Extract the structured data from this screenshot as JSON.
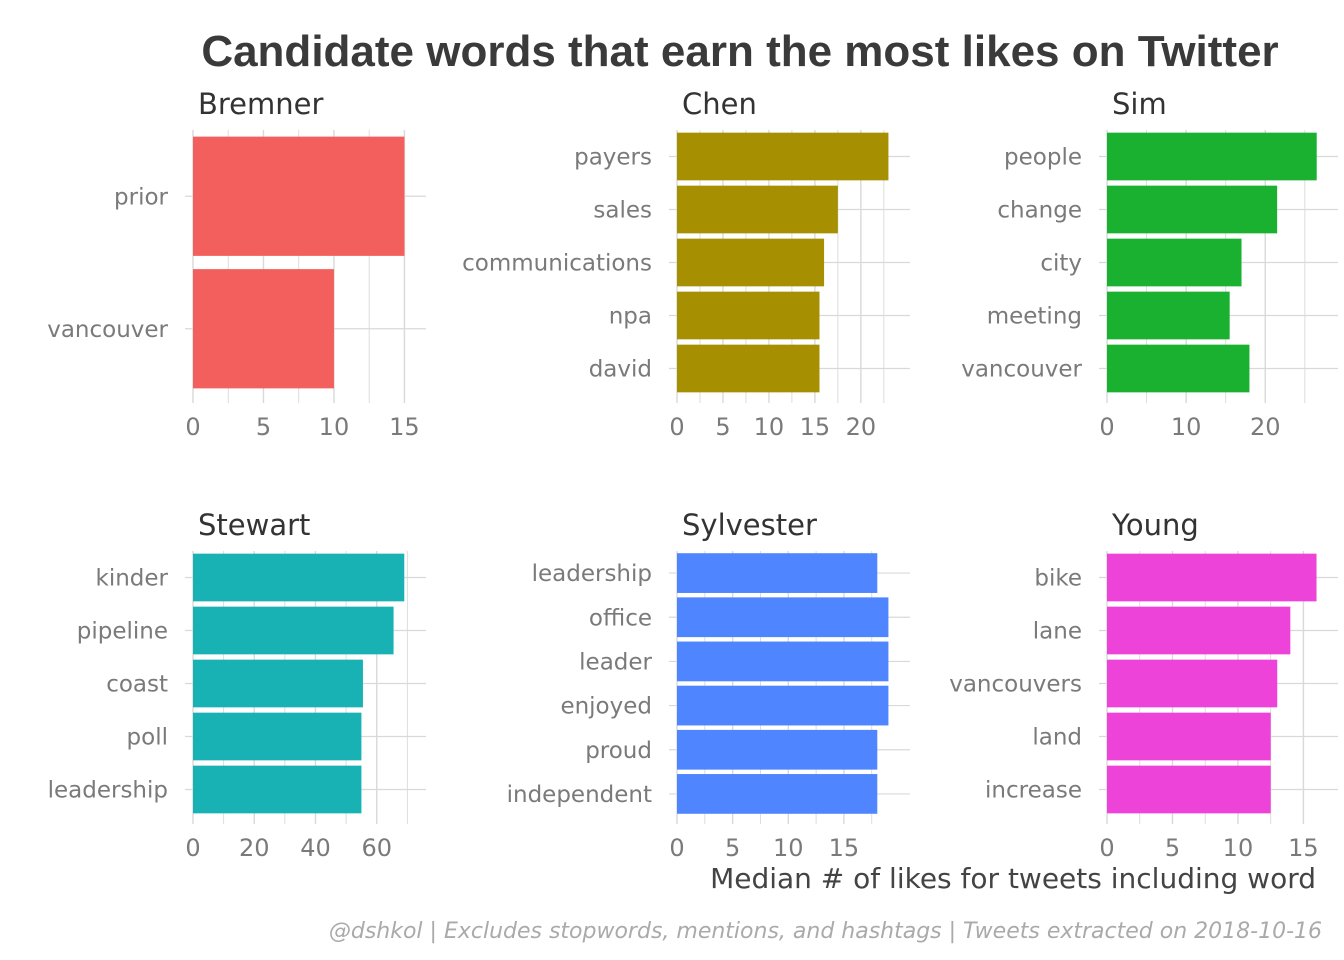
{
  "title": "Candidate words that earn the most likes on Twitter",
  "xlabel": "Median # of likes for tweets including word",
  "caption": "@dshkol | Excludes stopwords, mentions, and hashtags | Tweets extracted on 2018-10-16",
  "chart_data": [
    {
      "type": "bar",
      "orientation": "horizontal",
      "panel": "Bremner",
      "color": "#F25F5C",
      "categories": [
        "prior",
        "vancouver"
      ],
      "values": [
        15,
        10
      ],
      "xticks": [
        0,
        5,
        10,
        15
      ],
      "xlim": [
        0,
        15.75
      ]
    },
    {
      "type": "bar",
      "orientation": "horizontal",
      "panel": "Chen",
      "color": "#A68F00",
      "categories": [
        "payers",
        "sales",
        "communications",
        "npa",
        "david"
      ],
      "values": [
        23,
        17.5,
        16,
        15.5,
        15.5
      ],
      "xticks": [
        0,
        5,
        10,
        15,
        20
      ],
      "xlim": [
        0,
        24.15
      ]
    },
    {
      "type": "bar",
      "orientation": "horizontal",
      "panel": "Sim",
      "color": "#1BB130",
      "categories": [
        "people",
        "change",
        "city",
        "meeting",
        "vancouver"
      ],
      "values": [
        26.5,
        21.5,
        17,
        15.5,
        18
      ],
      "xticks": [
        0,
        10,
        20
      ],
      "xlim": [
        0,
        27.8
      ]
    },
    {
      "type": "bar",
      "orientation": "horizontal",
      "panel": "Stewart",
      "color": "#18B2B5",
      "categories": [
        "kinder",
        "pipeline",
        "coast",
        "poll",
        "leadership"
      ],
      "values": [
        69,
        65.5,
        55.5,
        55,
        55
      ],
      "xticks": [
        0,
        20,
        40,
        60
      ],
      "xlim": [
        0,
        72.5
      ]
    },
    {
      "type": "bar",
      "orientation": "horizontal",
      "panel": "Sylvester",
      "color": "#4F86FF",
      "categories": [
        "leadership",
        "office",
        "leader",
        "enjoyed",
        "proud",
        "independent"
      ],
      "values": [
        18,
        19,
        19,
        19,
        18,
        18
      ],
      "xticks": [
        0,
        5,
        10,
        15
      ],
      "xlim": [
        0,
        19.95
      ]
    },
    {
      "type": "bar",
      "orientation": "horizontal",
      "panel": "Young",
      "color": "#EE43D9",
      "categories": [
        "bike",
        "lane",
        "vancouvers",
        "land",
        "increase"
      ],
      "values": [
        16,
        14,
        13,
        12.5,
        12.5
      ],
      "xticks": [
        0,
        5,
        10,
        15
      ],
      "xlim": [
        0,
        16.8
      ]
    }
  ]
}
